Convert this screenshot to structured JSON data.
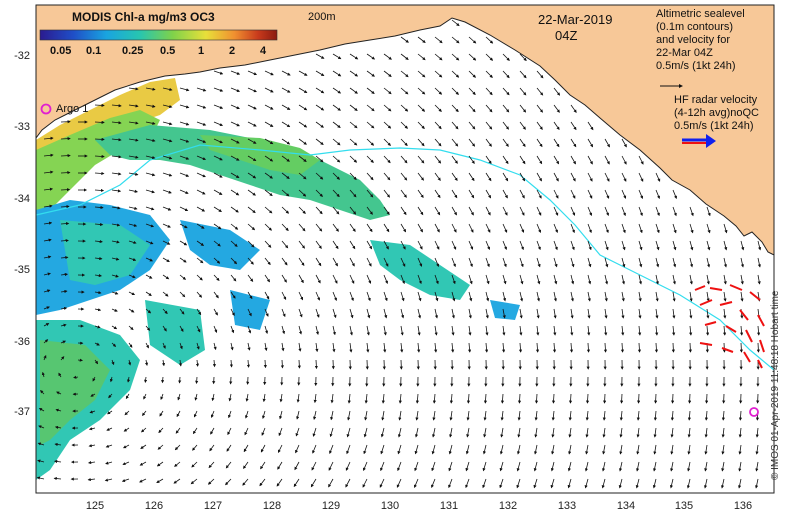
{
  "colorbar": {
    "title": "MODIS Chl-a mg/m3 OC3",
    "ticks": [
      "0.05",
      "0.1",
      "0.25",
      "0.5",
      "1",
      "2",
      "4"
    ],
    "colors": [
      "#2b1b8f",
      "#1f4ec7",
      "#19a4e0",
      "#27c5b0",
      "#7fd24a",
      "#e8e03a",
      "#f09030",
      "#c83a1c",
      "#8a1a10"
    ]
  },
  "contour_label": "200m",
  "date": "22-Mar-2019",
  "time": "04Z",
  "legend_altimetric": {
    "lines": [
      "Altimetric sealevel",
      "(0.1m contours)",
      "and velocity for",
      "22-Mar 04Z"
    ],
    "scale": "0.5m/s (1kt 24h)"
  },
  "legend_hf": {
    "lines": [
      "HF radar velocity",
      "(4-12h avg)noQC"
    ],
    "scale": "0.5m/s (1kt 24h)"
  },
  "argo_label": "Argo 1",
  "y_axis": [
    "-32",
    "-33",
    "-34",
    "-35",
    "-36",
    "-37"
  ],
  "x_axis": [
    "125",
    "126",
    "127",
    "128",
    "129",
    "130",
    "131",
    "132",
    "133",
    "134",
    "135",
    "136"
  ],
  "footer": "© IMOS 01-Apr-2019 11:48:18 Hobart time",
  "colors": {
    "land": "#f7c898",
    "coast": "#222222",
    "contour": "#33ddee",
    "argo": "#e020d0",
    "hf": "#ee1111"
  }
}
